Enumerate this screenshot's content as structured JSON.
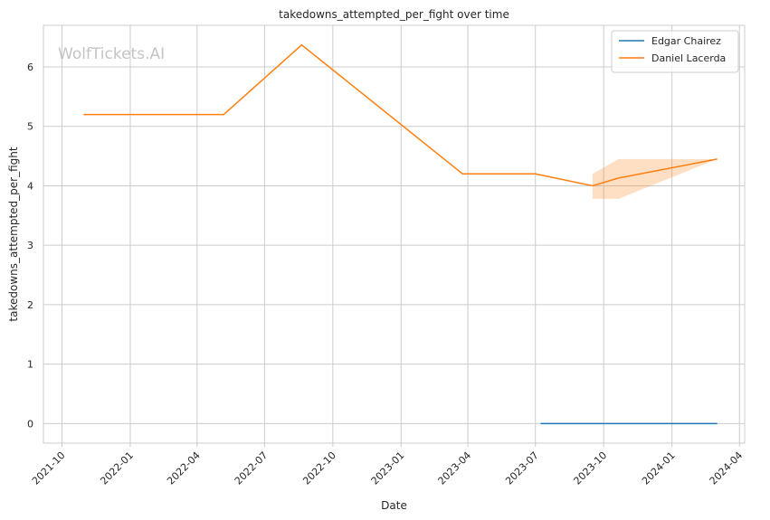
{
  "chart_data": {
    "type": "line",
    "title": "takedowns_attempted_per_fight over time",
    "xlabel": "Date",
    "ylabel": "takedowns_attempted_per_fight",
    "watermark": "WolfTickets.AI",
    "x_ticks": [
      "2021-10",
      "2022-01",
      "2022-04",
      "2022-07",
      "2022-10",
      "2023-01",
      "2023-04",
      "2023-07",
      "2023-10",
      "2024-01",
      "2024-04"
    ],
    "y_ticks": [
      0,
      1,
      2,
      3,
      4,
      5,
      6
    ],
    "xlim": [
      "2021-09-06",
      "2024-04-08"
    ],
    "ylim": [
      -0.33,
      6.7
    ],
    "grid": true,
    "legend_position": "top-right",
    "series": [
      {
        "name": "Edgar Chairez",
        "color": "#1f77b4",
        "points": [
          {
            "x": "2023-07-08",
            "y": 0
          },
          {
            "x": "2024-03-02",
            "y": 0
          }
        ]
      },
      {
        "name": "Daniel Lacerda",
        "color": "#ff7f0e",
        "points": [
          {
            "x": "2021-10-30",
            "y": 5.2
          },
          {
            "x": "2022-05-07",
            "y": 5.2
          },
          {
            "x": "2022-08-20",
            "y": 6.37
          },
          {
            "x": "2023-03-25",
            "y": 4.2
          },
          {
            "x": "2023-07-01",
            "y": 4.2
          },
          {
            "x": "2023-09-16",
            "y": 4.0
          },
          {
            "x": "2023-10-21",
            "y": 4.13
          },
          {
            "x": "2024-03-02",
            "y": 4.45
          }
        ],
        "band": [
          {
            "x": "2023-09-16",
            "low": 3.78,
            "high": 4.2
          },
          {
            "x": "2023-10-21",
            "low": 3.78,
            "high": 4.45
          },
          {
            "x": "2024-03-02",
            "low": 4.45,
            "high": 4.45
          }
        ]
      }
    ]
  }
}
